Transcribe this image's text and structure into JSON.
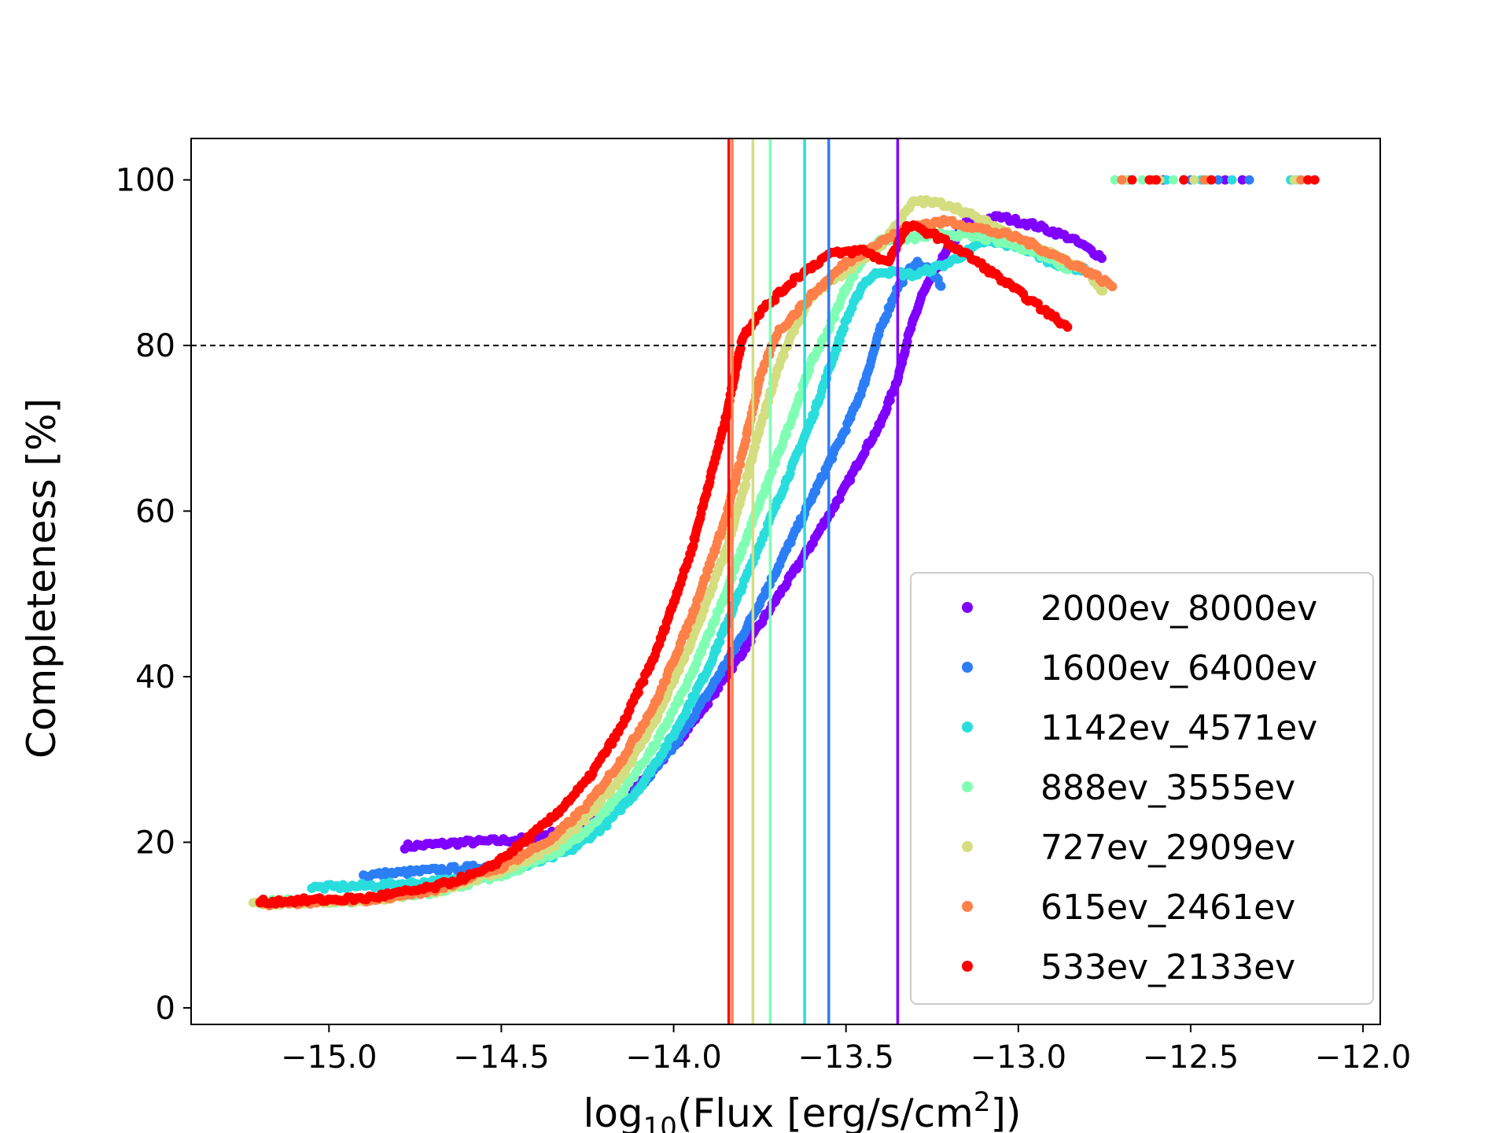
{
  "chart_data": {
    "type": "scatter",
    "title": "",
    "xlabel": {
      "prefix": "log",
      "sub": "10",
      "mid": "(Flux [erg/s/cm",
      "sup": "2",
      "suffix": "])"
    },
    "ylabel": "Completeness [%]",
    "xlim": [
      -15.4,
      -11.95
    ],
    "ylim": [
      -2,
      105
    ],
    "xticks": [
      -15.0,
      -14.5,
      -14.0,
      -13.5,
      -13.0,
      -12.5,
      -12.0
    ],
    "xtick_labels": [
      "−15.0",
      "−14.5",
      "−14.0",
      "−13.5",
      "−13.0",
      "−12.5",
      "−12.0"
    ],
    "yticks": [
      0,
      20,
      40,
      60,
      80,
      100
    ],
    "ytick_labels": [
      "0",
      "20",
      "40",
      "60",
      "80",
      "100"
    ],
    "threshold": {
      "y": 80,
      "style": "dashed",
      "color": "#000000"
    },
    "legend_position": "lower-right",
    "series": [
      {
        "name": "2000ev_8000ev",
        "color": "#8000ff",
        "vline": -13.35,
        "curve": [
          [
            -14.78,
            19.5
          ],
          [
            -14.6,
            20.0
          ],
          [
            -14.45,
            20.3
          ],
          [
            -14.3,
            21.5
          ],
          [
            -14.2,
            23.5
          ],
          [
            -14.1,
            27.0
          ],
          [
            -14.0,
            31.5
          ],
          [
            -13.9,
            37.0
          ],
          [
            -13.8,
            43.0
          ],
          [
            -13.7,
            49.5
          ],
          [
            -13.6,
            56.0
          ],
          [
            -13.5,
            63.0
          ],
          [
            -13.45,
            67.0
          ],
          [
            -13.4,
            70.5
          ],
          [
            -13.35,
            76.0
          ],
          [
            -13.32,
            81.0
          ],
          [
            -13.28,
            86.0
          ],
          [
            -13.22,
            90.5
          ],
          [
            -13.15,
            95.0
          ],
          [
            -13.05,
            95.5
          ],
          [
            -12.95,
            94.5
          ],
          [
            -12.85,
            93.0
          ],
          [
            -12.75,
            90.5
          ]
        ],
        "tail": [
          -12.58,
          -12.52,
          -12.45,
          -12.4,
          -12.35
        ]
      },
      {
        "name": "1600ev_6400ev",
        "color": "#2c7ef7",
        "vline": -13.55,
        "curve": [
          [
            -14.9,
            16.0
          ],
          [
            -14.7,
            16.6
          ],
          [
            -14.5,
            17.2
          ],
          [
            -14.4,
            18.2
          ],
          [
            -14.3,
            20.0
          ],
          [
            -14.2,
            22.5
          ],
          [
            -14.1,
            26.5
          ],
          [
            -14.0,
            31.5
          ],
          [
            -13.9,
            38.0
          ],
          [
            -13.8,
            45.0
          ],
          [
            -13.7,
            53.0
          ],
          [
            -13.6,
            61.5
          ],
          [
            -13.5,
            70.0
          ],
          [
            -13.45,
            75.0
          ],
          [
            -13.4,
            82.0
          ],
          [
            -13.35,
            87.0
          ],
          [
            -13.3,
            90.0
          ],
          [
            -13.25,
            89.0
          ],
          [
            -13.22,
            87.0
          ]
        ],
        "tail": [
          -12.6,
          -12.5,
          -12.42,
          -12.33
        ]
      },
      {
        "name": "1142ev_4571ev",
        "color": "#2adddd",
        "vline": -13.62,
        "curve": [
          [
            -15.05,
            14.5
          ],
          [
            -14.85,
            14.8
          ],
          [
            -14.6,
            15.5
          ],
          [
            -14.45,
            16.8
          ],
          [
            -14.3,
            19.0
          ],
          [
            -14.2,
            22.0
          ],
          [
            -14.1,
            26.5
          ],
          [
            -14.0,
            33.0
          ],
          [
            -13.9,
            41.0
          ],
          [
            -13.8,
            51.0
          ],
          [
            -13.7,
            61.0
          ],
          [
            -13.6,
            71.0
          ],
          [
            -13.55,
            77.0
          ],
          [
            -13.5,
            83.0
          ],
          [
            -13.45,
            87.5
          ],
          [
            -13.4,
            89.0
          ],
          [
            -13.3,
            88.5
          ],
          [
            -13.2,
            90.0
          ],
          [
            -13.1,
            92.5
          ],
          [
            -13.0,
            92.0
          ],
          [
            -12.9,
            90.0
          ],
          [
            -12.8,
            89.0
          ]
        ],
        "tail": [
          -12.68,
          -12.57,
          -12.47,
          -12.38,
          -12.21
        ]
      },
      {
        "name": "888ev_3555ev",
        "color": "#80ffb4",
        "vline": -13.72,
        "curve": [
          [
            -15.2,
            12.8
          ],
          [
            -14.9,
            13.0
          ],
          [
            -14.7,
            14.0
          ],
          [
            -14.5,
            16.0
          ],
          [
            -14.35,
            18.5
          ],
          [
            -14.25,
            21.5
          ],
          [
            -14.15,
            26.0
          ],
          [
            -14.05,
            32.0
          ],
          [
            -13.95,
            40.0
          ],
          [
            -13.85,
            50.0
          ],
          [
            -13.75,
            61.0
          ],
          [
            -13.65,
            72.0
          ],
          [
            -13.6,
            78.0
          ],
          [
            -13.55,
            82.0
          ],
          [
            -13.5,
            87.0
          ],
          [
            -13.45,
            90.5
          ],
          [
            -13.4,
            92.5
          ],
          [
            -13.3,
            93.0
          ],
          [
            -13.2,
            93.5
          ],
          [
            -13.1,
            93.0
          ],
          [
            -13.0,
            92.0
          ],
          [
            -12.9,
            90.5
          ],
          [
            -12.85,
            89.0
          ]
        ],
        "tail": [
          -12.72,
          -12.64,
          -12.55,
          -12.45,
          -12.19
        ]
      },
      {
        "name": "727ev_2909ev",
        "color": "#d4dd80",
        "vline": -13.77,
        "curve": [
          [
            -15.22,
            12.6
          ],
          [
            -14.9,
            13.0
          ],
          [
            -14.7,
            14.0
          ],
          [
            -14.5,
            16.5
          ],
          [
            -14.35,
            19.5
          ],
          [
            -14.25,
            23.0
          ],
          [
            -14.15,
            28.0
          ],
          [
            -14.05,
            35.0
          ],
          [
            -13.95,
            44.0
          ],
          [
            -13.85,
            55.0
          ],
          [
            -13.8,
            62.0
          ],
          [
            -13.75,
            70.0
          ],
          [
            -13.7,
            77.0
          ],
          [
            -13.65,
            82.0
          ],
          [
            -13.6,
            86.0
          ],
          [
            -13.5,
            89.0
          ],
          [
            -13.4,
            92.0
          ],
          [
            -13.3,
            97.5
          ],
          [
            -13.2,
            97.0
          ],
          [
            -13.1,
            95.0
          ],
          [
            -13.0,
            93.0
          ],
          [
            -12.9,
            91.0
          ],
          [
            -12.8,
            89.0
          ],
          [
            -12.75,
            86.0
          ]
        ],
        "tail": [
          -12.69,
          -12.59,
          -12.49,
          -12.2
        ]
      },
      {
        "name": "615ev_2461ev",
        "color": "#ff8048",
        "vline": -13.83,
        "curve": [
          [
            -15.2,
            12.6
          ],
          [
            -14.9,
            13.0
          ],
          [
            -14.7,
            14.2
          ],
          [
            -14.5,
            17.0
          ],
          [
            -14.35,
            20.5
          ],
          [
            -14.25,
            24.5
          ],
          [
            -14.15,
            30.0
          ],
          [
            -14.05,
            37.0
          ],
          [
            -13.95,
            47.0
          ],
          [
            -13.85,
            59.0
          ],
          [
            -13.8,
            67.0
          ],
          [
            -13.75,
            76.0
          ],
          [
            -13.7,
            81.5
          ],
          [
            -13.6,
            86.0
          ],
          [
            -13.5,
            90.0
          ],
          [
            -13.4,
            92.5
          ],
          [
            -13.3,
            94.5
          ],
          [
            -13.2,
            95.0
          ],
          [
            -13.1,
            94.0
          ],
          [
            -13.0,
            93.0
          ],
          [
            -12.9,
            91.0
          ],
          [
            -12.8,
            89.0
          ],
          [
            -12.72,
            87.0
          ]
        ],
        "tail": [
          -12.7,
          -12.61,
          -12.52,
          -12.46,
          -12.18
        ]
      },
      {
        "name": "533ev_2133ev",
        "color": "#ff0000",
        "vline": -13.84,
        "curve": [
          [
            -15.2,
            12.8
          ],
          [
            -14.9,
            13.2
          ],
          [
            -14.7,
            14.5
          ],
          [
            -14.55,
            16.5
          ],
          [
            -14.45,
            19.5
          ],
          [
            -14.35,
            23.0
          ],
          [
            -14.25,
            27.5
          ],
          [
            -14.15,
            34.0
          ],
          [
            -14.05,
            43.0
          ],
          [
            -13.95,
            55.0
          ],
          [
            -13.9,
            63.0
          ],
          [
            -13.85,
            71.0
          ],
          [
            -13.82,
            77.0
          ],
          [
            -13.8,
            81.0
          ],
          [
            -13.75,
            84.0
          ],
          [
            -13.65,
            88.0
          ],
          [
            -13.55,
            91.0
          ],
          [
            -13.45,
            91.5
          ],
          [
            -13.38,
            90.0
          ],
          [
            -13.32,
            94.5
          ],
          [
            -13.25,
            93.5
          ],
          [
            -13.15,
            91.0
          ],
          [
            -13.05,
            88.0
          ],
          [
            -12.95,
            85.0
          ],
          [
            -12.85,
            82.0
          ]
        ],
        "tail": [
          -12.67,
          -12.62,
          -12.6,
          -12.52,
          -12.44,
          -12.16,
          -12.14
        ]
      }
    ]
  }
}
